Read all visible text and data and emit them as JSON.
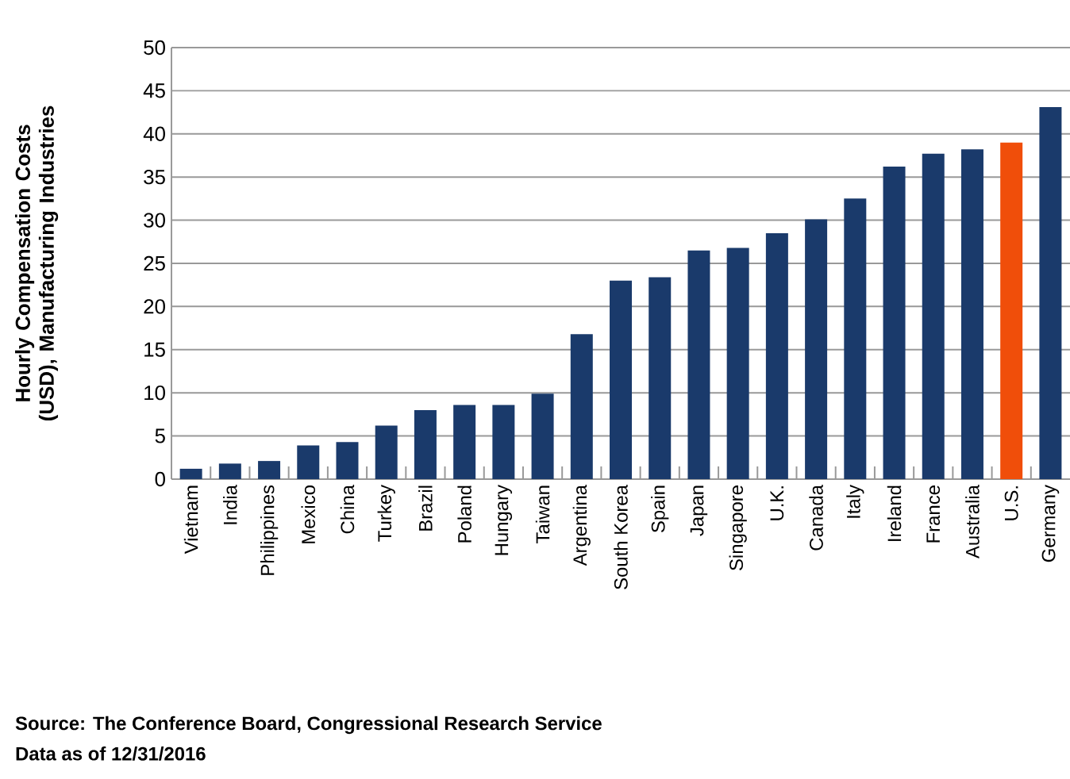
{
  "chart_data": {
    "type": "bar",
    "ylabel": "Hourly Compensation Costs (USD), Manufacturing Industries",
    "categories": [
      "Vietnam",
      "India",
      "Philippines",
      "Mexico",
      "China",
      "Turkey",
      "Brazil",
      "Poland",
      "Hungary",
      "Taiwan",
      "Argentina",
      "South Korea",
      "Spain",
      "Japan",
      "Singapore",
      "U.K.",
      "Canada",
      "Italy",
      "Ireland",
      "France",
      "Australia",
      "U.S.",
      "Germany"
    ],
    "values": [
      1.2,
      1.8,
      2.1,
      3.9,
      4.3,
      6.2,
      8.0,
      8.6,
      8.6,
      9.9,
      16.8,
      23.0,
      23.4,
      26.5,
      26.8,
      28.5,
      30.1,
      32.5,
      36.2,
      37.7,
      38.2,
      39.0,
      43.1
    ],
    "colors": [
      "#1a3a6b",
      "#1a3a6b",
      "#1a3a6b",
      "#1a3a6b",
      "#1a3a6b",
      "#1a3a6b",
      "#1a3a6b",
      "#1a3a6b",
      "#1a3a6b",
      "#1a3a6b",
      "#1a3a6b",
      "#1a3a6b",
      "#1a3a6b",
      "#1a3a6b",
      "#1a3a6b",
      "#1a3a6b",
      "#1a3a6b",
      "#1a3a6b",
      "#1a3a6b",
      "#1a3a6b",
      "#1a3a6b",
      "#f04e0a",
      "#1a3a6b"
    ],
    "ylim": [
      0,
      50
    ],
    "yticks": [
      0,
      5,
      10,
      15,
      20,
      25,
      30,
      35,
      40,
      45,
      50
    ],
    "grid": "y",
    "annotations": [
      "Source: The Conference Board, Congressional Research Service",
      "Data as of 12/31/2016"
    ]
  }
}
